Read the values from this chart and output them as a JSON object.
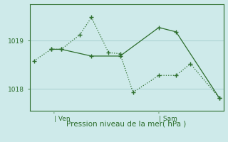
{
  "background_color": "#ceeaea",
  "grid_color": "#add4d4",
  "line_color": "#2d6e2d",
  "xlabel": "Pression niveau de la mer( hPa )",
  "yticks": [
    1018,
    1019
  ],
  "ylim": [
    1017.55,
    1019.75
  ],
  "xlim": [
    0,
    13.5
  ],
  "ven_x": 1.7,
  "sam_x": 9.0,
  "line1_x": [
    0.3,
    1.5,
    2.2,
    3.5,
    4.3,
    5.5,
    6.3,
    7.2,
    9.0,
    10.2,
    11.2,
    13.2
  ],
  "line1_y": [
    1018.58,
    1018.82,
    1018.82,
    1019.12,
    1019.48,
    1018.75,
    1018.73,
    1017.93,
    1018.28,
    1018.28,
    1018.52,
    1017.82
  ],
  "line2_x": [
    1.5,
    2.2,
    4.3,
    6.3,
    9.0,
    10.2,
    13.2
  ],
  "line2_y": [
    1018.82,
    1018.82,
    1018.68,
    1018.68,
    1019.27,
    1019.18,
    1017.82
  ],
  "font_color": "#2d6e2d",
  "font_size_ytick": 6.5,
  "font_size_xtick": 6.5,
  "font_size_xlabel": 7.5
}
